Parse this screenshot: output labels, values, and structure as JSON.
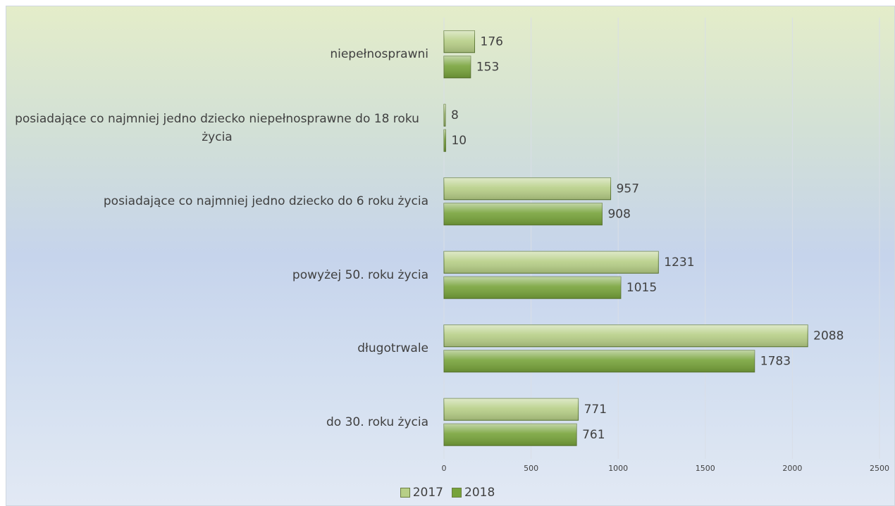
{
  "chart_data": {
    "type": "bar",
    "orientation": "horizontal",
    "categories": [
      "niepełnosprawni",
      "posiadające co najmniej jedno dziecko niepełnosprawne do 18 roku życia",
      "posiadające co najmniej jedno dziecko do 6 roku życia",
      "powyżej 50. roku życia",
      "długotrwale",
      "do 30. roku życia"
    ],
    "series": [
      {
        "name": "2017",
        "color": "#b7cf87",
        "values": [
          176,
          8,
          957,
          1231,
          2088,
          771
        ]
      },
      {
        "name": "2018",
        "color": "#77a33a",
        "values": [
          153,
          10,
          908,
          1015,
          1783,
          761
        ]
      }
    ],
    "xlim": [
      0,
      2500
    ],
    "xticks": [
      0,
      500,
      1000,
      1500,
      2000,
      2500
    ],
    "grid": true,
    "legend": "bottom"
  }
}
